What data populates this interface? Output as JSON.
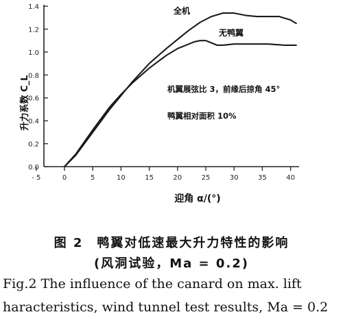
{
  "chart_data": {
    "type": "line",
    "title": "",
    "xlabel": "迎角 α/(°)",
    "ylabel": "升力系数 C_L",
    "xlim": [
      -5,
      42
    ],
    "ylim": [
      0,
      1.4
    ],
    "x_ticks": [
      -5,
      0,
      5,
      10,
      15,
      20,
      25,
      30,
      35,
      40
    ],
    "y_ticks": [
      0.0,
      0.2,
      0.4,
      0.6,
      0.8,
      1.0,
      1.2,
      1.4
    ],
    "grid": false,
    "series": [
      {
        "name": "全机",
        "x": [
          0,
          2,
          5,
          8,
          10,
          12,
          15,
          18,
          20,
          22,
          24,
          26,
          28,
          30,
          32,
          34,
          36,
          38,
          40,
          41
        ],
        "y": [
          0.0,
          0.1,
          0.3,
          0.5,
          0.62,
          0.74,
          0.9,
          1.03,
          1.11,
          1.19,
          1.26,
          1.31,
          1.34,
          1.34,
          1.32,
          1.31,
          1.31,
          1.31,
          1.28,
          1.25
        ]
      },
      {
        "name": "无鸭翼",
        "x": [
          0,
          2,
          5,
          8,
          10,
          12,
          15,
          18,
          20,
          22,
          23,
          24,
          25,
          26,
          27,
          28,
          30,
          33,
          36,
          39,
          41
        ],
        "y": [
          0.0,
          0.11,
          0.32,
          0.52,
          0.63,
          0.73,
          0.86,
          0.97,
          1.03,
          1.07,
          1.09,
          1.1,
          1.1,
          1.08,
          1.06,
          1.06,
          1.07,
          1.07,
          1.07,
          1.06,
          1.06
        ]
      }
    ],
    "annotations": [
      "机翼展弦比 3，前缘后掠角 45°",
      "鸭翼相对面积 10%"
    ]
  },
  "caption": {
    "zh_line1": "图 2　鸭翼对低速最大升力特性的影响",
    "zh_line2": "(风洞试验，Ma = 0.2)",
    "en_line1": "Fig.2   The influence of the canard on max. lift",
    "en_line2": "haracteristics, wind tunnel test results, Ma = 0.2"
  }
}
